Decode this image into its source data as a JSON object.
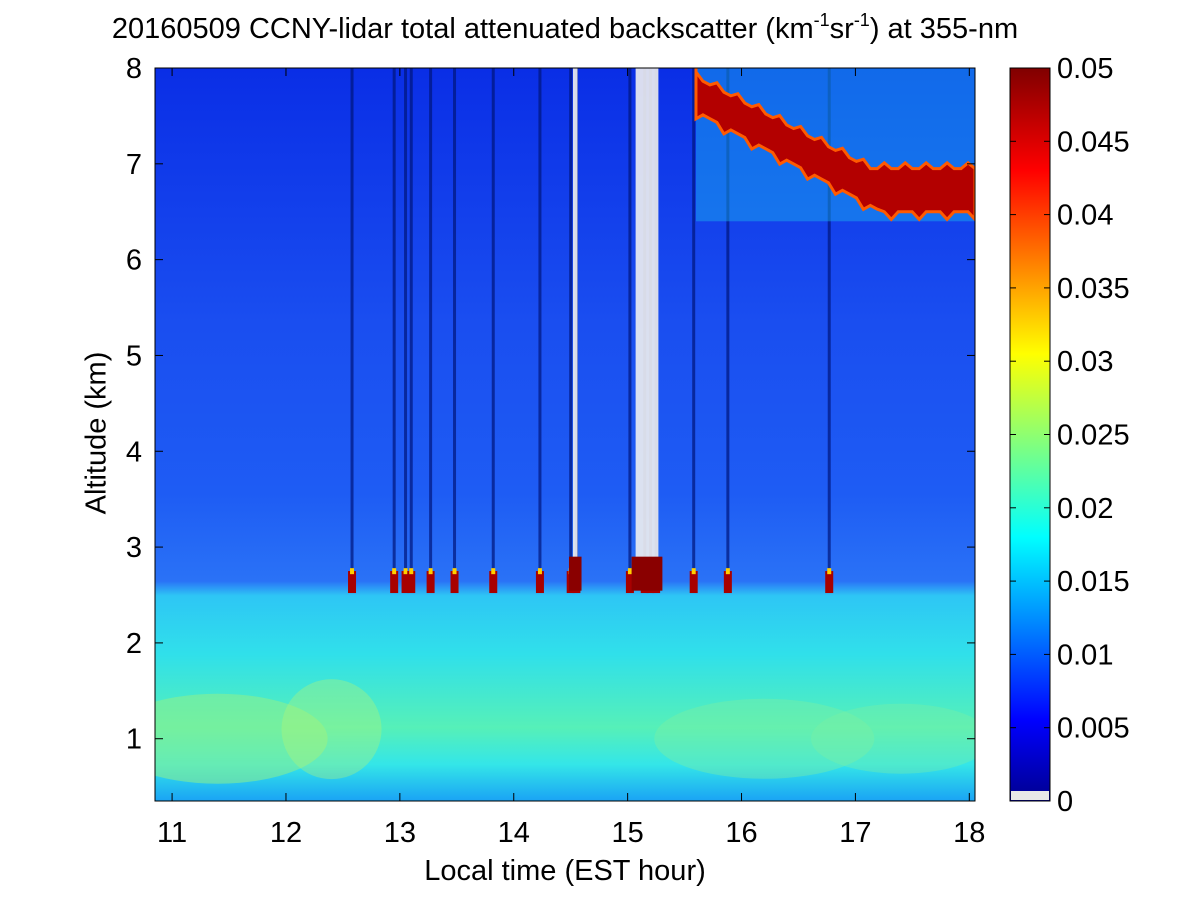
{
  "chart_data": {
    "type": "heatmap",
    "title": {
      "prefix": "20160509 CCNY-lidar total attenuated backscatter (km",
      "exp1": "-1",
      "mid": "sr",
      "exp2": "-1",
      "suffix": ") at 355-nm"
    },
    "xlabel": "Local time (EST hour)",
    "ylabel": "Altitude (km)",
    "xlim": [
      10.85,
      18.05
    ],
    "ylim": [
      0.35,
      8
    ],
    "x_ticks": [
      "11",
      "12",
      "13",
      "14",
      "15",
      "16",
      "17",
      "18"
    ],
    "y_ticks": [
      "1",
      "2",
      "3",
      "4",
      "5",
      "6",
      "7",
      "8"
    ],
    "colorbar": {
      "range": [
        0,
        0.05
      ],
      "ticks": [
        "0",
        "0.005",
        "0.01",
        "0.015",
        "0.02",
        "0.025",
        "0.03",
        "0.035",
        "0.04",
        "0.045",
        "0.05"
      ],
      "colormap": "jet"
    },
    "features": {
      "boundary_layer_top_km": 2.5,
      "near_surface_peak_km": 1.0,
      "cirrus_layer": {
        "x_start": 15.6,
        "x_end": 18.05,
        "altitude_top_km": 7.9,
        "altitude_bottom_km": 6.5
      },
      "low_clouds_km": 2.6,
      "cloud_events_hours": [
        12.58,
        12.95,
        13.05,
        13.1,
        13.27,
        13.48,
        13.82,
        14.23,
        14.5,
        14.55,
        15.02,
        15.15,
        15.2,
        15.25,
        15.58,
        15.88,
        16.77
      ],
      "signal_loss_columns": [
        [
          14.52,
          14.56
        ],
        [
          15.07,
          15.27
        ]
      ]
    }
  }
}
